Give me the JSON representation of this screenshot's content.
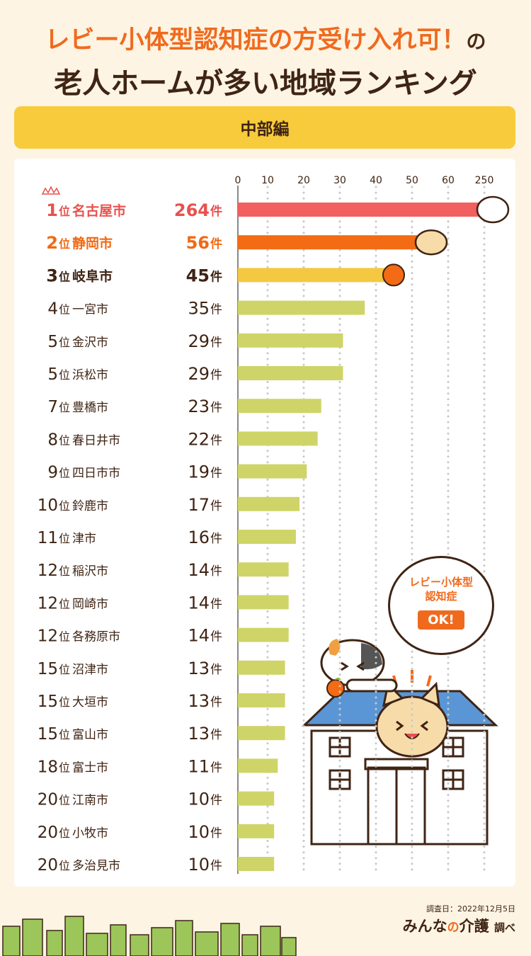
{
  "header": {
    "title_line1_main": "レビー小体型認知症の方受け入れ可！",
    "title_line1_tail": "の",
    "title_line2": "老人ホームが多い地域ランキング",
    "region": "中部編"
  },
  "balloon": {
    "line1": "レビー小体型",
    "line2": "認知症",
    "ok": "OK!"
  },
  "footer": {
    "date": "調査日：2022年12月5日",
    "brand_a": "みんな",
    "brand_no": "の",
    "brand_b": "介護",
    "brand_suffix": "調べ"
  },
  "colors": {
    "rank1": "#f25f5f",
    "rank2": "#f36b14",
    "rank3": "#f5c841",
    "other": "#cfd468",
    "text_default": "#3f2414",
    "text_rank1": "#e8514d",
    "text_rank2": "#f06a14"
  },
  "chart_data": {
    "type": "bar",
    "orientation": "horizontal",
    "x_ticks": [
      "0",
      "10",
      "20",
      "30",
      "40",
      "50",
      "60",
      "250"
    ],
    "axis_note": "broken axis between 60 and 250",
    "grid": true,
    "value_suffix": "件",
    "rank_suffix": "位",
    "rows": [
      {
        "rank": "1",
        "city": "名古屋市",
        "value": 264
      },
      {
        "rank": "2",
        "city": "静岡市",
        "value": 56
      },
      {
        "rank": "3",
        "city": "岐阜市",
        "value": 45
      },
      {
        "rank": "4",
        "city": "一宮市",
        "value": 35
      },
      {
        "rank": "5",
        "city": "金沢市",
        "value": 29
      },
      {
        "rank": "5",
        "city": "浜松市",
        "value": 29
      },
      {
        "rank": "7",
        "city": "豊橋市",
        "value": 23
      },
      {
        "rank": "8",
        "city": "春日井市",
        "value": 22
      },
      {
        "rank": "9",
        "city": "四日市市",
        "value": 19
      },
      {
        "rank": "10",
        "city": "鈴鹿市",
        "value": 17
      },
      {
        "rank": "11",
        "city": "津市",
        "value": 16
      },
      {
        "rank": "12",
        "city": "稲沢市",
        "value": 14
      },
      {
        "rank": "12",
        "city": "岡崎市",
        "value": 14
      },
      {
        "rank": "12",
        "city": "各務原市",
        "value": 14
      },
      {
        "rank": "15",
        "city": "沼津市",
        "value": 13
      },
      {
        "rank": "15",
        "city": "大垣市",
        "value": 13
      },
      {
        "rank": "15",
        "city": "富山市",
        "value": 13
      },
      {
        "rank": "18",
        "city": "富士市",
        "value": 11
      },
      {
        "rank": "20",
        "city": "江南市",
        "value": 10
      },
      {
        "rank": "20",
        "city": "小牧市",
        "value": 10
      },
      {
        "rank": "20",
        "city": "多治見市",
        "value": 10
      }
    ]
  }
}
